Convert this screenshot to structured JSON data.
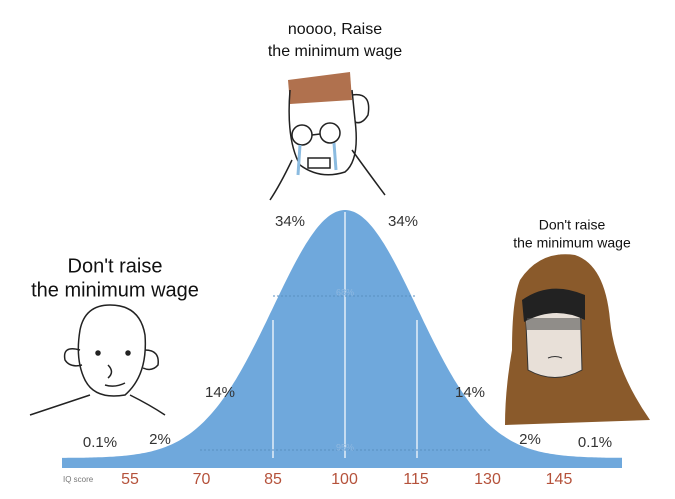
{
  "captions": {
    "middle": [
      "noooo, Raise",
      "the minimum wage"
    ],
    "left": [
      "Don't raise",
      "the minimum wage"
    ],
    "right": [
      "Don't raise",
      "the minimum wage"
    ]
  },
  "axis": {
    "label": "IQ score",
    "ticks": [
      "55",
      "70",
      "85",
      "100",
      "115",
      "130",
      "145"
    ]
  },
  "percentages": {
    "far_left": "0.1%",
    "left_tail": "2%",
    "left_mid": "14%",
    "left_center": "34%",
    "right_center": "34%",
    "right_mid": "14%",
    "right_tail": "2%",
    "far_right": "0.1%",
    "inner": "68%",
    "outer": "95%"
  }
}
